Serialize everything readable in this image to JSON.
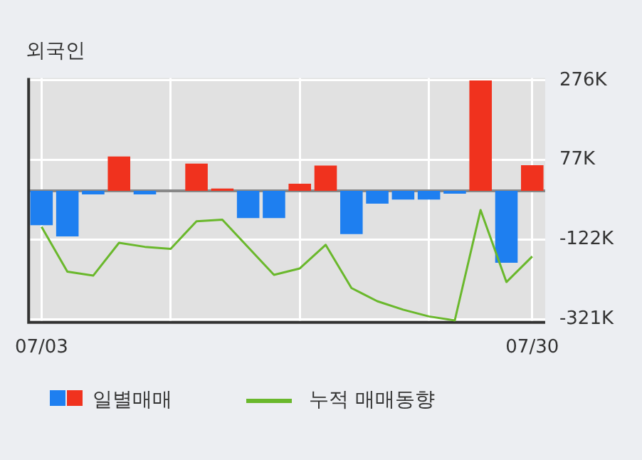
{
  "chart_data": {
    "type": "bar",
    "title": "외국인",
    "categories": [
      "07/03",
      null,
      null,
      null,
      null,
      null,
      null,
      null,
      null,
      null,
      null,
      null,
      null,
      null,
      null,
      null,
      null,
      null,
      null,
      "07/30"
    ],
    "series": [
      {
        "name": "일별매매",
        "colors": [
          "#1e7ff0",
          "#1e7ff0",
          "#1e7ff0",
          "#f0321e",
          "#1e7ff0",
          "#f0321e",
          "#f0321e",
          "#f0321e",
          "#1e7ff0",
          "#1e7ff0",
          "#f0321e",
          "#f0321e",
          "#1e7ff0",
          "#1e7ff0",
          "#1e7ff0",
          "#1e7ff0",
          "#1e7ff0",
          "#f0321e",
          "#1e7ff0",
          "#f0321e"
        ],
        "values": [
          -86000,
          -114000,
          -9000,
          86000,
          -9000,
          0,
          68000,
          6000,
          -68000,
          -68000,
          18000,
          63000,
          -108000,
          -32000,
          -22000,
          -22000,
          -7000,
          276000,
          -180000,
          64000
        ]
      },
      {
        "type": "line",
        "name": "누적 매매동향",
        "color": "#6ab82c",
        "values": [
          -90000,
          -202000,
          -212000,
          -130000,
          -140000,
          -145000,
          -76000,
          -72000,
          -141000,
          -210000,
          -194000,
          -135000,
          -243000,
          -276000,
          -297000,
          -314000,
          -324000,
          -48000,
          -228000,
          -164000
        ]
      }
    ],
    "ylim": [
      -329000,
      282000
    ],
    "yticks": [
      {
        "value": -321000,
        "label": "-321K"
      },
      {
        "value": -122000,
        "label": "-122K"
      },
      {
        "value": 77000,
        "label": "77K"
      },
      {
        "value": 276000,
        "label": "276K"
      }
    ],
    "grid": true,
    "legend": "bottom"
  }
}
